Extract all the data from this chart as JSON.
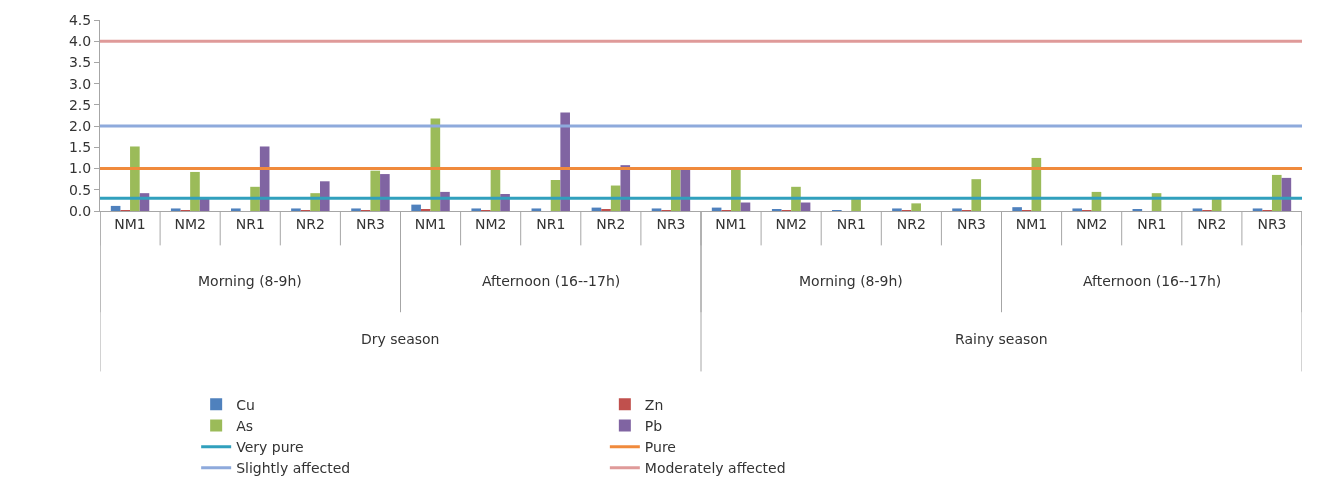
{
  "chart_data": {
    "type": "bar",
    "categories": [
      "NM1",
      "NM2",
      "NR1",
      "NR2",
      "NR3",
      "NM1",
      "NM2",
      "NR1",
      "NR2",
      "NR3",
      "NM1",
      "NM2",
      "NR1",
      "NR2",
      "NR3",
      "NM1",
      "NM2",
      "NR1",
      "NR2",
      "NR3"
    ],
    "series": [
      {
        "name": "Cu",
        "color": "#4f81bd",
        "values": [
          0.12,
          0.06,
          0.06,
          0.06,
          0.06,
          0.15,
          0.06,
          0.06,
          0.08,
          0.06,
          0.08,
          0.03,
          0.02,
          0.06,
          0.06,
          0.09,
          0.06,
          0.03,
          0.06,
          0.06
        ]
      },
      {
        "name": "Zn",
        "color": "#c0504d",
        "values": [
          0.02,
          0.02,
          0,
          0.02,
          0.02,
          0.03,
          0.02,
          0,
          0.03,
          0.02,
          0.02,
          0.02,
          0,
          0.02,
          0.02,
          0.02,
          0.02,
          0,
          0.02,
          0.02
        ]
      },
      {
        "name": "As",
        "color": "#9bbb59",
        "values": [
          1.52,
          0.92,
          0.57,
          0.42,
          0.95,
          2.18,
          0.97,
          0.73,
          0.6,
          0.97,
          0.97,
          0.57,
          0.3,
          0.18,
          0.75,
          1.25,
          0.45,
          0.42,
          0.3,
          0.85
        ]
      },
      {
        "name": "Pb",
        "color": "#8064a2",
        "values": [
          0.42,
          0.3,
          1.52,
          0.7,
          0.87,
          0.45,
          0.4,
          2.32,
          1.08,
          0.97,
          0.2,
          0.2,
          0,
          0,
          0,
          0,
          0,
          0,
          0,
          0.78
        ]
      }
    ],
    "ref_lines": [
      {
        "axis": "y",
        "value": 0.3,
        "label": "Very pure",
        "color": "#31a0bd"
      },
      {
        "axis": "y",
        "value": 1.0,
        "label": "Pure",
        "color": "#f08a3c"
      },
      {
        "axis": "y",
        "value": 2.0,
        "label": "Slightly affected",
        "color": "#8eaadc"
      },
      {
        "axis": "y",
        "value": 4.0,
        "label": "Moderately affected",
        "color": "#df9a99"
      }
    ],
    "annotations": [
      "Morning (8-9h)",
      "Afternoon (16--17h)",
      "Morning (8-9h)",
      "Afternoon (16--17h)",
      "Dry season",
      "Rainy season"
    ],
    "ylim": [
      0,
      4.5
    ],
    "yticks": [
      {
        "value": 0,
        "label": "0.0"
      },
      {
        "value": 0.5,
        "label": "0.5"
      },
      {
        "value": 1,
        "label": "1.0"
      },
      {
        "value": 1.5,
        "label": "1.5"
      },
      {
        "value": 2,
        "label": "2.0"
      },
      {
        "value": 2.5,
        "label": "2.5"
      },
      {
        "value": 3,
        "label": "3.0"
      },
      {
        "value": 3.5,
        "label": "3.5"
      },
      {
        "value": 4,
        "label": "4.0"
      },
      {
        "value": 4.5,
        "label": "4.5"
      }
    ],
    "grid": false,
    "legend": "bottom"
  }
}
